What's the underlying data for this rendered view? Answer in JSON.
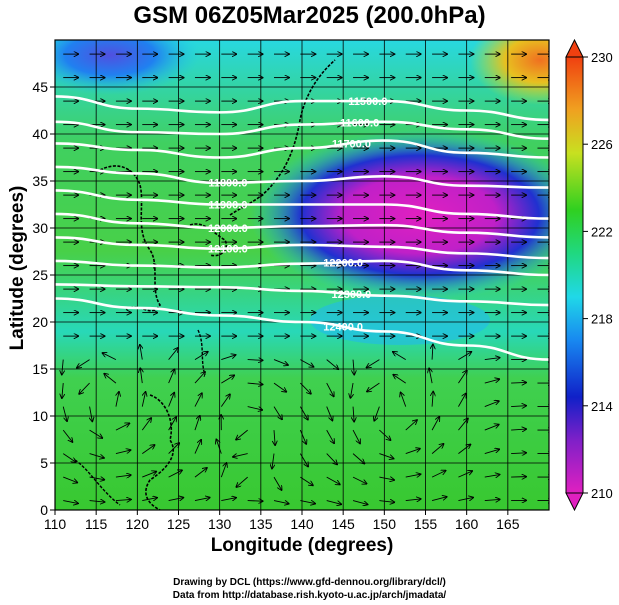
{
  "title": "GSM 06Z05Mar2025 (200.0hPa)",
  "xlabel": "Longitude (degrees)",
  "ylabel": "Latitude  (degrees)",
  "credit_line1": "Drawing by DCL (https://www.gfd-dennou.org/library/dcl/)",
  "credit_line2": "Data from http://database.rish.kyoto-u.ac.jp/arch/jmadata/",
  "chart_data": {
    "type": "heatmap",
    "x_ticks": [
      "110",
      "115",
      "120",
      "125",
      "130",
      "135",
      "140",
      "145",
      "150",
      "155",
      "160",
      "165"
    ],
    "y_ticks": [
      "0",
      "5",
      "10",
      "15",
      "20",
      "25",
      "30",
      "35",
      "40",
      "45"
    ],
    "xlim": [
      110,
      170
    ],
    "ylim": [
      0,
      50
    ],
    "colorbar": {
      "ticks": [
        "210",
        "214",
        "218",
        "222",
        "226",
        "230"
      ],
      "range": [
        210,
        230
      ],
      "colors": [
        "#e040c0",
        "#1020c8",
        "#20c8f0",
        "#20d020",
        "#c8e020",
        "#f06010"
      ]
    },
    "contours": [
      {
        "label": "11500.0",
        "label_lon": 148,
        "points": [
          [
            110,
            44
          ],
          [
            120,
            42.7
          ],
          [
            130,
            42.3
          ],
          [
            140,
            43.5
          ],
          [
            150,
            43.5
          ],
          [
            160,
            42.5
          ],
          [
            170,
            41.5
          ]
        ]
      },
      {
        "label": "11600.0",
        "label_lon": 147,
        "points": [
          [
            110,
            41.3
          ],
          [
            120,
            40.2
          ],
          [
            130,
            40
          ],
          [
            140,
            41
          ],
          [
            150,
            41.3
          ],
          [
            160,
            40.5
          ],
          [
            170,
            39.5
          ]
        ]
      },
      {
        "label": "11700.0",
        "label_lon": 146,
        "points": [
          [
            110,
            39
          ],
          [
            120,
            38.3
          ],
          [
            130,
            37.5
          ],
          [
            140,
            38.5
          ],
          [
            150,
            39.3
          ],
          [
            160,
            38
          ],
          [
            170,
            37.5
          ]
        ]
      },
      {
        "label": "11800.0",
        "label_lon": 131,
        "points": [
          [
            110,
            36.5
          ],
          [
            120,
            35.8
          ],
          [
            130,
            34.8
          ],
          [
            140,
            35
          ],
          [
            150,
            35.5
          ],
          [
            160,
            34.5
          ],
          [
            170,
            34.3
          ]
        ]
      },
      {
        "label": "11900.0",
        "label_lon": 131,
        "points": [
          [
            110,
            34
          ],
          [
            120,
            33
          ],
          [
            130,
            32.5
          ],
          [
            140,
            32.5
          ],
          [
            150,
            32.5
          ],
          [
            160,
            31.5
          ],
          [
            170,
            31
          ]
        ]
      },
      {
        "label": "12000.0",
        "label_lon": 131,
        "points": [
          [
            110,
            31.5
          ],
          [
            120,
            30.5
          ],
          [
            130,
            30
          ],
          [
            140,
            30.2
          ],
          [
            150,
            30.3
          ],
          [
            160,
            29.5
          ],
          [
            170,
            29
          ]
        ]
      },
      {
        "label": "12100.0",
        "label_lon": 131,
        "points": [
          [
            110,
            29
          ],
          [
            120,
            28.2
          ],
          [
            130,
            27.8
          ],
          [
            140,
            28.2
          ],
          [
            150,
            28
          ],
          [
            160,
            27.3
          ],
          [
            170,
            26.8
          ]
        ]
      },
      {
        "label": "12200.0",
        "label_lon": 145,
        "points": [
          [
            110,
            26.5
          ],
          [
            120,
            26
          ],
          [
            130,
            25.8
          ],
          [
            140,
            26.2
          ],
          [
            150,
            26.5
          ],
          [
            160,
            25.5
          ],
          [
            170,
            25
          ]
        ]
      },
      {
        "label": "12300.0",
        "label_lon": 146,
        "points": [
          [
            110,
            24
          ],
          [
            120,
            23.8
          ],
          [
            130,
            23.7
          ],
          [
            140,
            23.3
          ],
          [
            150,
            22.8
          ],
          [
            160,
            22.2
          ],
          [
            170,
            21.8
          ]
        ]
      },
      {
        "label": "12400.0",
        "label_lon": 145,
        "points": [
          [
            110,
            22.5
          ],
          [
            120,
            21.5
          ],
          [
            130,
            20.7
          ],
          [
            140,
            20
          ],
          [
            150,
            19
          ],
          [
            160,
            17.5
          ],
          [
            170,
            16
          ]
        ]
      }
    ]
  }
}
